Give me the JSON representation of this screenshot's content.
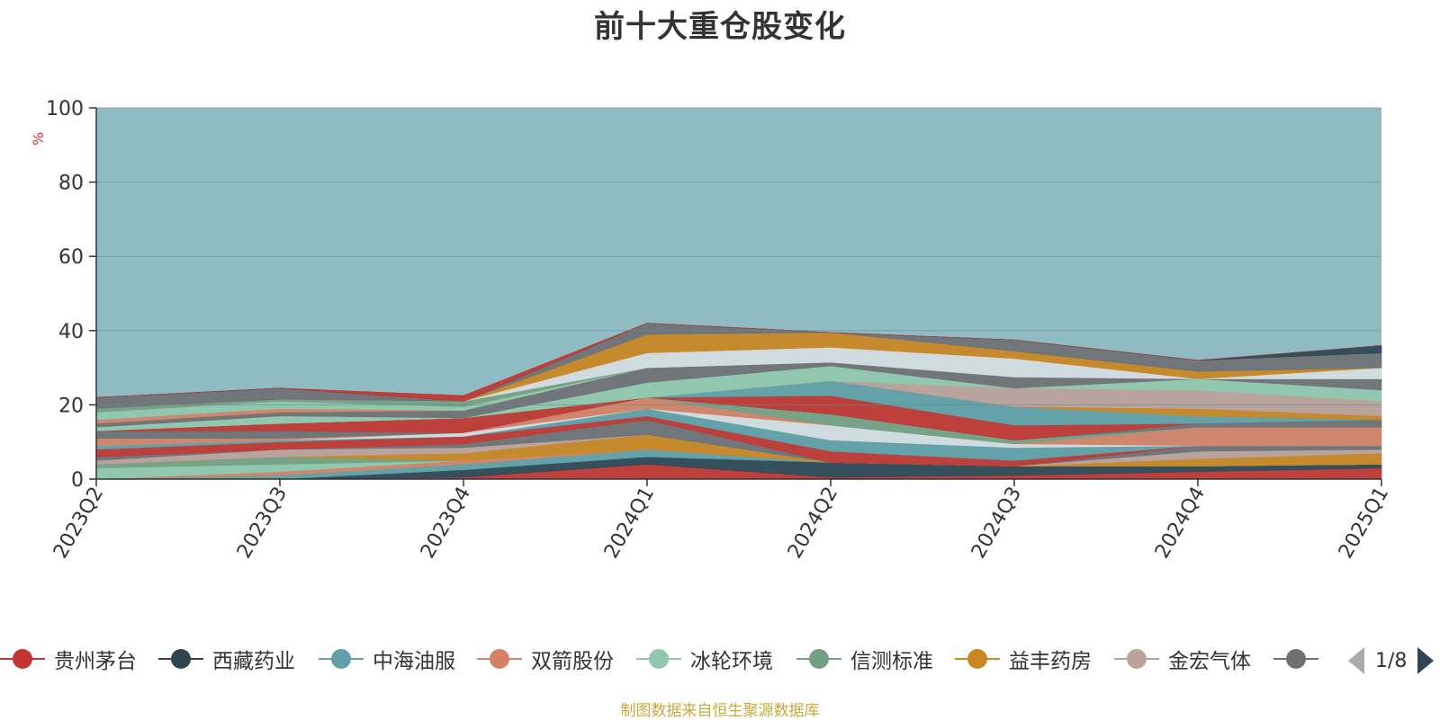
{
  "title": "前十大重仓股变化",
  "footer": "制图数据来自恒生聚源数据库",
  "pager": "1/8",
  "chart_data": {
    "type": "area",
    "stacked": true,
    "ylabel": "%",
    "ylim": [
      0,
      100
    ],
    "yticks": [
      0,
      20,
      40,
      60,
      80,
      100
    ],
    "grid": true,
    "legend_position": "bottom",
    "background_color": "#91bbc2",
    "categories": [
      "2023Q2",
      "2023Q3",
      "2023Q4",
      "2024Q1",
      "2024Q2",
      "2024Q3",
      "2024Q4",
      "2025Q1"
    ],
    "series": [
      {
        "name": "贵州茅台",
        "color": "#c23531",
        "values": [
          0,
          0,
          0.5,
          4,
          0.5,
          1,
          2,
          3
        ]
      },
      {
        "name": "西藏药业",
        "color": "#2f4554",
        "values": [
          0,
          0,
          2,
          2,
          4,
          2.5,
          1.5,
          1
        ]
      },
      {
        "name": "中海油服",
        "color": "#61a0a8",
        "values": [
          0,
          1,
          1.5,
          2,
          0,
          0,
          0,
          0
        ]
      },
      {
        "name": "双箭股份",
        "color": "#d48265",
        "values": [
          0,
          1,
          1,
          0,
          0,
          0,
          0,
          0
        ]
      },
      {
        "name": "冰轮环境",
        "color": "#91c7ae",
        "values": [
          3,
          2,
          0,
          0,
          0,
          0,
          0,
          0
        ]
      },
      {
        "name": "信测标准",
        "color": "#749f83",
        "values": [
          1,
          2,
          0,
          0,
          0,
          0,
          0,
          0
        ]
      },
      {
        "name": "益丰药房",
        "color": "#ca8622",
        "values": [
          0,
          0,
          2,
          4,
          0,
          0,
          2,
          3
        ]
      },
      {
        "name": "金宏气体",
        "color": "#bda29a",
        "values": [
          1,
          2,
          1.5,
          0,
          0,
          0,
          2,
          1
        ]
      },
      {
        "name": "",
        "color": "#6e7074",
        "values": [
          1,
          0,
          1,
          4,
          0,
          0,
          1.5,
          1
        ]
      },
      {
        "name": "",
        "color": "#c23531",
        "values": [
          2,
          2,
          2,
          1,
          3,
          1.5,
          0,
          0
        ]
      },
      {
        "name": "",
        "color": "#61a0a8",
        "values": [
          1,
          0.5,
          0,
          2,
          3,
          3.5,
          0,
          0
        ]
      },
      {
        "name": "",
        "color": "#d6dde3",
        "values": [
          0,
          0,
          1,
          0,
          4,
          1,
          0,
          0
        ]
      },
      {
        "name": "",
        "color": "#d48265",
        "values": [
          2,
          0.5,
          0,
          3,
          0,
          0,
          5,
          5
        ]
      },
      {
        "name": "",
        "color": "#749f83",
        "values": [
          0,
          0,
          0,
          0,
          3,
          1,
          0,
          0
        ]
      },
      {
        "name": "",
        "color": "#6e7074",
        "values": [
          2,
          2,
          0,
          0,
          0,
          0,
          1,
          2
        ]
      },
      {
        "name": "",
        "color": "#c23531",
        "values": [
          0,
          2,
          4,
          0,
          5,
          4,
          0,
          0
        ]
      },
      {
        "name": "",
        "color": "#61a0a8",
        "values": [
          0,
          0,
          0,
          0,
          4,
          5,
          2,
          0
        ]
      },
      {
        "name": "",
        "color": "#ca8622",
        "values": [
          0,
          0,
          0,
          0,
          0,
          0,
          2,
          1
        ]
      },
      {
        "name": "",
        "color": "#bda29a",
        "values": [
          0,
          0,
          0,
          0,
          0,
          5,
          5,
          4
        ]
      },
      {
        "name": "",
        "color": "#91c7ae",
        "values": [
          1,
          2,
          0,
          4,
          4,
          0,
          3,
          3
        ]
      },
      {
        "name": "",
        "color": "#6e7074",
        "values": [
          1,
          1,
          2,
          4,
          1,
          3,
          0,
          3
        ]
      },
      {
        "name": "",
        "color": "#d48265",
        "values": [
          1,
          1,
          0,
          0,
          0,
          0,
          0,
          0
        ]
      },
      {
        "name": "",
        "color": "#91c7ae",
        "values": [
          2,
          2,
          1,
          0,
          0,
          0,
          0,
          0
        ]
      },
      {
        "name": "",
        "color": "#749f83",
        "values": [
          1,
          0.5,
          1.5,
          0,
          0,
          0,
          0,
          0
        ]
      },
      {
        "name": "",
        "color": "#d6dde3",
        "values": [
          0,
          0,
          0,
          4,
          4,
          5,
          0,
          3
        ]
      },
      {
        "name": "",
        "color": "#ca8622",
        "values": [
          0,
          0,
          0,
          5,
          4,
          2,
          2,
          0
        ]
      },
      {
        "name": "",
        "color": "#6e7074",
        "values": [
          3,
          3,
          0,
          3,
          0,
          3,
          3,
          4
        ]
      },
      {
        "name": "",
        "color": "#2f4554",
        "values": [
          0,
          0,
          0,
          0,
          0,
          0,
          0,
          2
        ]
      },
      {
        "name": "",
        "color": "#c23531",
        "values": [
          0,
          0,
          1.5,
          0,
          0,
          0,
          0,
          0
        ]
      }
    ]
  },
  "legend_visible": [
    "贵州茅台",
    "西藏药业",
    "中海油服",
    "双箭股份",
    "冰轮环境",
    "信测标准",
    "益丰药房",
    "金宏气体",
    ""
  ]
}
